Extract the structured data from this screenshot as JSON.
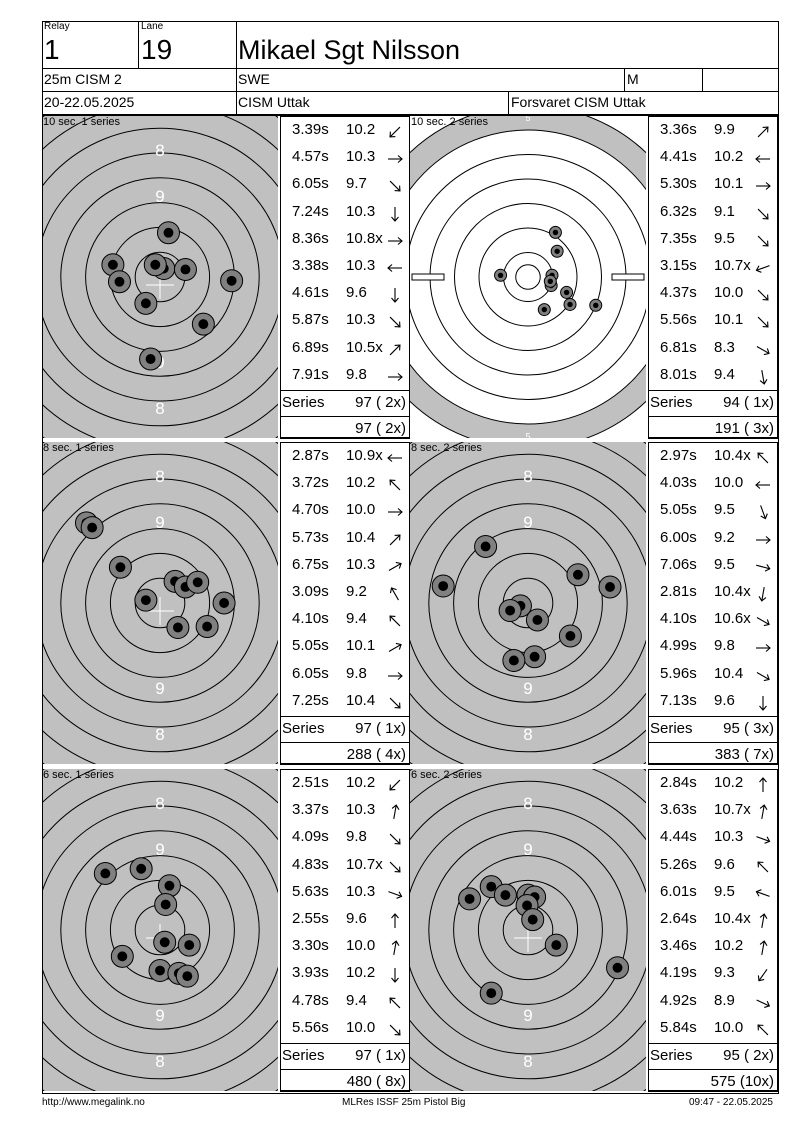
{
  "header": {
    "relay_label": "Relay",
    "relay": "1",
    "lane_label": "Lane",
    "lane": "19",
    "shooter": "Mikael Sgt Nilsson",
    "event": "25m CISM 2",
    "nation": "SWE",
    "gender": "M",
    "date": "20-22.05.2025",
    "competition": "CISM Uttak",
    "club": "Forsvaret CISM Uttak"
  },
  "series": [
    {
      "title": "10 sec. 1 series",
      "target_style": "precision",
      "shots": [
        {
          "time": "3.39s",
          "value": "10.2",
          "dir": 225,
          "x": 0.04,
          "y": 0.09
        },
        {
          "time": "4.57s",
          "value": "10.3",
          "dir": 0,
          "x": 0.27,
          "y": 0.08
        },
        {
          "time": "6.05s",
          "value": "9.7",
          "dir": -45,
          "x": 0.76,
          "y": -0.04
        },
        {
          "time": "7.24s",
          "value": "10.3",
          "dir": -90,
          "x": -0.15,
          "y": -0.28
        },
        {
          "time": "8.36s",
          "value": "10.8x",
          "dir": 0,
          "x": -0.05,
          "y": 0.13
        },
        {
          "time": "3.38s",
          "value": "10.3",
          "dir": 180,
          "x": -0.5,
          "y": 0.13
        },
        {
          "time": "4.61s",
          "value": "9.6",
          "dir": -90,
          "x": 0.46,
          "y": -0.5
        },
        {
          "time": "5.87s",
          "value": "10.3",
          "dir": -45,
          "x": -0.43,
          "y": -0.05
        },
        {
          "time": "6.89s",
          "value": "10.5x",
          "dir": 45,
          "x": 0.09,
          "y": 0.47
        },
        {
          "time": "7.91s",
          "value": "9.8",
          "dir": 0,
          "x": -0.1,
          "y": -0.87
        }
      ],
      "series_label": "Series",
      "series_total": "97 ( 2x)",
      "running_total": "97 ( 2x)"
    },
    {
      "title": "10 sec. 2 series",
      "target_style": "rapid",
      "shots": [
        {
          "time": "3.36s",
          "value": "9.9",
          "dir": 45,
          "x": 0.32,
          "y": 0.52
        },
        {
          "time": "4.41s",
          "value": "10.2",
          "dir": 180,
          "x": 0.34,
          "y": 0.3
        },
        {
          "time": "5.30s",
          "value": "10.1",
          "dir": 0,
          "x": 0.28,
          "y": 0.02
        },
        {
          "time": "6.32s",
          "value": "9.1",
          "dir": -45,
          "x": 0.27,
          "y": -0.1
        },
        {
          "time": "7.35s",
          "value": "9.5",
          "dir": -45,
          "x": 0.45,
          "y": -0.18
        },
        {
          "time": "3.15s",
          "value": "10.7x",
          "dir": 200,
          "x": 0.26,
          "y": -0.05
        },
        {
          "time": "4.37s",
          "value": "10.0",
          "dir": -45,
          "x": 0.49,
          "y": -0.32
        },
        {
          "time": "5.56s",
          "value": "10.1",
          "dir": -45,
          "x": 0.19,
          "y": -0.38
        },
        {
          "time": "6.81s",
          "value": "8.3",
          "dir": -30,
          "x": 0.79,
          "y": -0.33
        },
        {
          "time": "8.01s",
          "value": "9.4",
          "dir": -80,
          "x": -0.32,
          "y": 0.02
        }
      ],
      "series_label": "Series",
      "series_total": "94 ( 1x)",
      "running_total": "191 ( 3x)"
    },
    {
      "title": "8 sec. 1 series",
      "target_style": "precision",
      "shots": [
        {
          "time": "2.87s",
          "value": "10.9x",
          "dir": 180,
          "x": -0.15,
          "y": 0.03
        },
        {
          "time": "3.72s",
          "value": "10.2",
          "dir": 135,
          "x": 0.16,
          "y": 0.23
        },
        {
          "time": "4.70s",
          "value": "10.0",
          "dir": 0,
          "x": 0.27,
          "y": 0.17
        },
        {
          "time": "5.73s",
          "value": "10.4",
          "dir": 45,
          "x": 0.4,
          "y": 0.22
        },
        {
          "time": "6.75s",
          "value": "10.3",
          "dir": 30,
          "x": 0.68,
          "y": 0.0
        },
        {
          "time": "3.09s",
          "value": "9.2",
          "dir": 120,
          "x": -0.42,
          "y": 0.38
        },
        {
          "time": "4.10s",
          "value": "9.4",
          "dir": 135,
          "x": -0.78,
          "y": 0.85
        },
        {
          "time": "5.05s",
          "value": "10.1",
          "dir": 30,
          "x": -0.72,
          "y": 0.8
        },
        {
          "time": "6.05s",
          "value": "9.8",
          "dir": 0,
          "x": 0.19,
          "y": -0.26
        },
        {
          "time": "7.25s",
          "value": "10.4",
          "dir": -45,
          "x": 0.5,
          "y": -0.25
        }
      ],
      "series_label": "Series",
      "series_total": "97 ( 1x)",
      "running_total": "288 ( 4x)"
    },
    {
      "title": "8 sec. 2 series",
      "target_style": "precision",
      "shots": [
        {
          "time": "2.97s",
          "value": "10.4x",
          "dir": 135,
          "x": -0.08,
          "y": -0.03
        },
        {
          "time": "4.03s",
          "value": "10.0",
          "dir": 180,
          "x": 0.1,
          "y": -0.18
        },
        {
          "time": "5.05s",
          "value": "9.5",
          "dir": -70,
          "x": -0.45,
          "y": 0.6
        },
        {
          "time": "6.00s",
          "value": "9.2",
          "dir": 0,
          "x": 0.53,
          "y": 0.3
        },
        {
          "time": "7.06s",
          "value": "9.5",
          "dir": -15,
          "x": 0.87,
          "y": 0.17
        },
        {
          "time": "2.81s",
          "value": "10.4x",
          "dir": -100,
          "x": -0.19,
          "y": -0.08
        },
        {
          "time": "4.10s",
          "value": "10.6x",
          "dir": -30,
          "x": -0.9,
          "y": 0.18
        },
        {
          "time": "4.99s",
          "value": "9.8",
          "dir": 0,
          "x": 0.45,
          "y": -0.35
        },
        {
          "time": "5.96s",
          "value": "10.4",
          "dir": -30,
          "x": 0.07,
          "y": -0.57
        },
        {
          "time": "7.13s",
          "value": "9.6",
          "dir": -90,
          "x": -0.15,
          "y": -0.61
        }
      ],
      "series_label": "Series",
      "series_total": "95 ( 3x)",
      "running_total": "383 ( 7x)"
    },
    {
      "title": "6 sec. 1 series",
      "target_style": "precision",
      "shots": [
        {
          "time": "2.51s",
          "value": "10.2",
          "dir": 225,
          "x": 0.1,
          "y": 0.47
        },
        {
          "time": "3.37s",
          "value": "10.3",
          "dir": 80,
          "x": 0.06,
          "y": 0.27
        },
        {
          "time": "4.09s",
          "value": "9.8",
          "dir": -45,
          "x": -0.2,
          "y": 0.65
        },
        {
          "time": "4.83s",
          "value": "10.7x",
          "dir": -45,
          "x": 0.05,
          "y": -0.13
        },
        {
          "time": "5.63s",
          "value": "10.3",
          "dir": -20,
          "x": 0.31,
          "y": -0.16
        },
        {
          "time": "2.55s",
          "value": "9.6",
          "dir": 90,
          "x": -0.58,
          "y": 0.6
        },
        {
          "time": "3.30s",
          "value": "10.0",
          "dir": 80,
          "x": -0.4,
          "y": -0.28
        },
        {
          "time": "3.93s",
          "value": "10.2",
          "dir": -90,
          "x": 0.0,
          "y": -0.43
        },
        {
          "time": "4.78s",
          "value": "9.4",
          "dir": 135,
          "x": 0.2,
          "y": -0.46
        },
        {
          "time": "5.56s",
          "value": "10.0",
          "dir": -45,
          "x": 0.29,
          "y": -0.49
        }
      ],
      "series_label": "Series",
      "series_total": "97 ( 1x)",
      "running_total": "480 ( 8x)"
    },
    {
      "title": "6 sec. 2 series",
      "target_style": "precision",
      "shots": [
        {
          "time": "2.84s",
          "value": "10.2",
          "dir": 90,
          "x": -0.39,
          "y": 0.46
        },
        {
          "time": "3.63s",
          "value": "10.7x",
          "dir": 80,
          "x": -0.24,
          "y": 0.37
        },
        {
          "time": "4.44s",
          "value": "10.3",
          "dir": -20,
          "x": -0.62,
          "y": 0.33
        },
        {
          "time": "5.26s",
          "value": "9.6",
          "dir": 135,
          "x": 0.0,
          "y": 0.37
        },
        {
          "time": "6.01s",
          "value": "9.5",
          "dir": 160,
          "x": 0.07,
          "y": 0.35
        },
        {
          "time": "2.64s",
          "value": "10.4x",
          "dir": 80,
          "x": -0.01,
          "y": 0.26
        },
        {
          "time": "3.46s",
          "value": "10.2",
          "dir": 80,
          "x": 0.05,
          "y": 0.11
        },
        {
          "time": "4.19s",
          "value": "9.3",
          "dir": 235,
          "x": 0.3,
          "y": -0.16
        },
        {
          "time": "4.92s",
          "value": "8.9",
          "dir": -25,
          "x": 0.95,
          "y": -0.4
        },
        {
          "time": "5.84s",
          "value": "10.0",
          "dir": 135,
          "x": -0.39,
          "y": -0.67
        }
      ],
      "series_label": "Series",
      "series_total": "95 ( 2x)",
      "running_total": "575 (10x)"
    }
  ],
  "footer": {
    "left": "http://www.megalink.no",
    "center": "MLRes ISSF 25m Pistol Big",
    "right": "09:47 - 22.05.2025"
  }
}
